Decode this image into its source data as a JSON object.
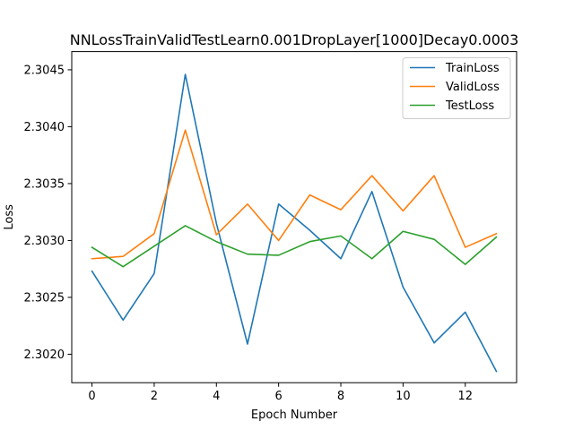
{
  "chart_data": {
    "type": "line",
    "title": "NNLossTrainValidTestLearn0.001DropLayer[1000]Decay0.0003",
    "xlabel": "Epoch Number",
    "ylabel": "Loss",
    "x": [
      0,
      1,
      2,
      3,
      4,
      5,
      6,
      7,
      8,
      9,
      10,
      11,
      12,
      13
    ],
    "xlim": [
      -0.65,
      13.65
    ],
    "ylim": [
      2.30175,
      2.30466
    ],
    "xticks": [
      0,
      2,
      4,
      6,
      8,
      10,
      12
    ],
    "xtick_labels": [
      "0",
      "2",
      "4",
      "6",
      "8",
      "10",
      "12"
    ],
    "yticks": [
      2.302,
      2.3025,
      2.303,
      2.3035,
      2.304,
      2.3045
    ],
    "ytick_labels": [
      "2.3020",
      "2.3025",
      "2.3030",
      "2.3035",
      "2.3040",
      "2.3045"
    ],
    "grid": false,
    "legend_position": "upper right",
    "series": [
      {
        "name": "TrainLoss",
        "color": "#1f77b4",
        "values": [
          2.30273,
          2.3023,
          2.30271,
          2.30446,
          2.30315,
          2.30209,
          2.30332,
          2.30309,
          2.30284,
          2.30343,
          2.30259,
          2.3021,
          2.30237,
          2.30185
        ]
      },
      {
        "name": "ValidLoss",
        "color": "#ff7f0e",
        "values": [
          2.30284,
          2.30286,
          2.30306,
          2.30397,
          2.30305,
          2.30332,
          2.303,
          2.3034,
          2.30327,
          2.30357,
          2.30326,
          2.30357,
          2.30294,
          2.30306
        ]
      },
      {
        "name": "TestLoss",
        "color": "#2ca02c",
        "values": [
          2.30294,
          2.30277,
          2.30295,
          2.30313,
          2.30299,
          2.30288,
          2.30287,
          2.30299,
          2.30304,
          2.30284,
          2.30308,
          2.30301,
          2.30279,
          2.30303
        ]
      }
    ]
  }
}
